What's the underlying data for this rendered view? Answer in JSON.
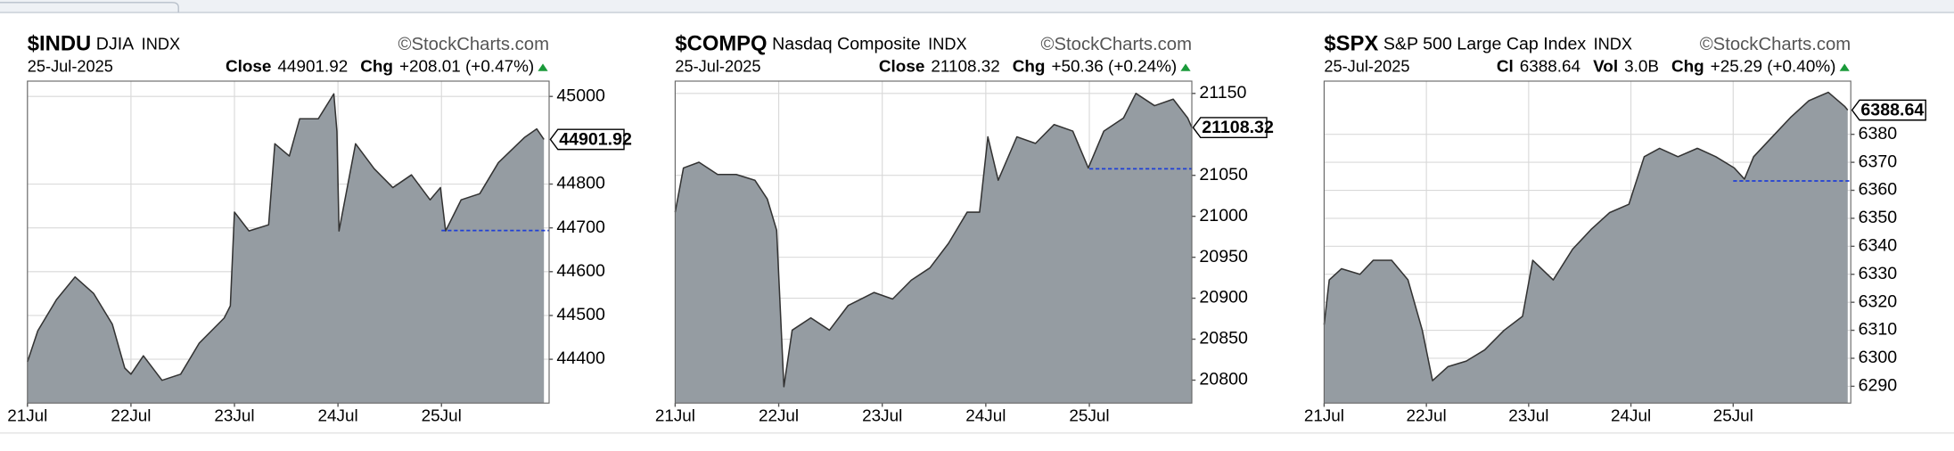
{
  "chart_data": [
    {
      "type": "area",
      "title": "$INDU",
      "subtitle": "DJIA",
      "exchange": "INDX",
      "watermark": "©StockCharts.com",
      "date": "25-Jul-2025",
      "stats": [
        {
          "label": "Close",
          "value": "44901.92"
        },
        {
          "label": "Chg",
          "value": "+208.01 (+0.47%)"
        }
      ],
      "color": "#959ca2",
      "line_color": "#333333",
      "reference_value": 44693.91,
      "reference_color": "#1f3fd6",
      "x": [
        0,
        0.1,
        0.28,
        0.46,
        0.64,
        0.82,
        0.94,
        1.0,
        1.12,
        1.3,
        1.48,
        1.66,
        1.9,
        1.96,
        2.0,
        2.14,
        2.33,
        2.39,
        2.53,
        2.63,
        2.81,
        2.96,
        2.99,
        3.01,
        3.17,
        3.35,
        3.53,
        3.71,
        3.89,
        3.99,
        4.04,
        4.19,
        4.37,
        4.55,
        4.8,
        4.92,
        4.99
      ],
      "values": [
        44394,
        44465,
        44536,
        44588,
        44550,
        44480,
        44380,
        44366,
        44408,
        44352,
        44366,
        44437,
        44494,
        44522,
        44736,
        44693,
        44707,
        44892,
        44864,
        44949,
        44949,
        45006,
        44920,
        44693,
        44892,
        44835,
        44792,
        44821,
        44764,
        44792,
        44693,
        44764,
        44778,
        44849,
        44906,
        44926,
        44901.92
      ],
      "xlim": [
        0,
        5.04
      ],
      "xticks": [
        {
          "value": 0,
          "label": "21Jul"
        },
        {
          "value": 1,
          "label": "22Jul"
        },
        {
          "value": 2,
          "label": "23Jul"
        },
        {
          "value": 3,
          "label": "24Jul"
        },
        {
          "value": 4,
          "label": "25Jul"
        }
      ],
      "ylim": [
        44300,
        45035
      ],
      "yticks": [
        44400,
        44500,
        44600,
        44700,
        44800,
        45000
      ],
      "grid": true
    },
    {
      "type": "area",
      "title": "$COMPQ",
      "subtitle": "Nasdaq Composite",
      "exchange": "INDX",
      "watermark": "©StockCharts.com",
      "date": "25-Jul-2025",
      "stats": [
        {
          "label": "Close",
          "value": "21108.32"
        },
        {
          "label": "Chg",
          "value": "+50.36 (+0.24%)"
        }
      ],
      "color": "#959ca2",
      "line_color": "#333333",
      "reference_value": 21057.96,
      "reference_color": "#1f3fd6",
      "x": [
        0,
        0.08,
        0.23,
        0.41,
        0.59,
        0.77,
        0.89,
        0.98,
        1.05,
        1.13,
        1.31,
        1.49,
        1.67,
        1.92,
        2.1,
        2.28,
        2.46,
        2.64,
        2.82,
        2.94,
        3.02,
        3.12,
        3.3,
        3.48,
        3.66,
        3.84,
        3.99,
        4.14,
        4.33,
        4.45,
        4.63,
        4.81,
        4.95,
        4.99
      ],
      "values": [
        21005,
        21059,
        21066,
        21051,
        21051,
        21044,
        21021,
        20983,
        20792,
        20861,
        20876,
        20861,
        20891,
        20907,
        20899,
        20922,
        20937,
        20967,
        21005,
        21005,
        21097,
        21044,
        21097,
        21089,
        21112,
        21104,
        21059,
        21104,
        21120,
        21150,
        21135,
        21143,
        21120,
        21108.32
      ],
      "xlim": [
        0,
        4.99
      ],
      "xticks": [
        {
          "value": 0,
          "label": "21Jul"
        },
        {
          "value": 1,
          "label": "22Jul"
        },
        {
          "value": 2,
          "label": "23Jul"
        },
        {
          "value": 3,
          "label": "24Jul"
        },
        {
          "value": 4,
          "label": "25Jul"
        }
      ],
      "ylim": [
        20772,
        21165
      ],
      "yticks": [
        20800,
        20850,
        20900,
        20950,
        21000,
        21050,
        21150
      ],
      "grid": true
    },
    {
      "type": "area",
      "title": "$SPX",
      "subtitle": "S&P 500 Large Cap Index",
      "exchange": "INDX",
      "watermark": "©StockCharts.com",
      "date": "25-Jul-2025",
      "stats": [
        {
          "label": "Cl",
          "value": "6388.64"
        },
        {
          "label": "Vol",
          "value": "3.0B"
        },
        {
          "label": "Chg",
          "value": "+25.29 (+0.40%)"
        }
      ],
      "color": "#959ca2",
      "line_color": "#333333",
      "reference_value": 6363.35,
      "reference_color": "#1f3fd6",
      "x": [
        0,
        0.05,
        0.17,
        0.35,
        0.48,
        0.66,
        0.82,
        0.96,
        1.06,
        1.21,
        1.39,
        1.57,
        1.76,
        1.94,
        2.04,
        2.24,
        2.43,
        2.61,
        2.79,
        2.98,
        3.13,
        3.28,
        3.46,
        3.65,
        3.83,
        4.01,
        4.11,
        4.2,
        4.38,
        4.56,
        4.74,
        4.93,
        5.09,
        5.12
      ],
      "values": [
        6312,
        6328,
        6332,
        6330,
        6335,
        6335,
        6328,
        6310,
        6292,
        6297,
        6299,
        6303,
        6310,
        6315,
        6335,
        6328,
        6339,
        6346,
        6352,
        6355,
        6372,
        6375,
        6372,
        6375,
        6372,
        6368,
        6364,
        6372,
        6379,
        6386,
        6392,
        6395,
        6390,
        6388.64
      ],
      "xlim": [
        0,
        5.15
      ],
      "xticks": [
        {
          "value": 0,
          "label": "21Jul"
        },
        {
          "value": 1,
          "label": "22Jul"
        },
        {
          "value": 2,
          "label": "23Jul"
        },
        {
          "value": 3,
          "label": "24Jul"
        },
        {
          "value": 4,
          "label": "25Jul"
        }
      ],
      "ylim": [
        6284,
        6399
      ],
      "yticks": [
        6290,
        6300,
        6310,
        6320,
        6330,
        6340,
        6350,
        6360,
        6370,
        6380
      ],
      "grid": true
    }
  ]
}
